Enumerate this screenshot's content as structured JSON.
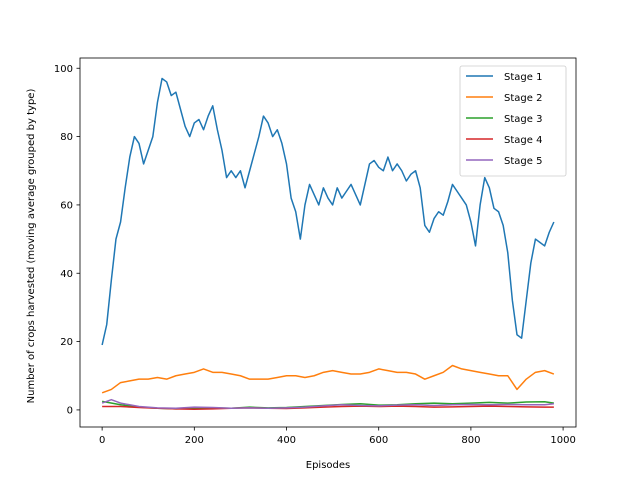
{
  "chart_data": {
    "type": "line",
    "title": "",
    "xlabel": "Episodes",
    "ylabel": "Number of crops harvested (moving average grouped by type)",
    "xlim": [
      -48,
      1028
    ],
    "ylim": [
      -5,
      103
    ],
    "xticks": [
      0,
      200,
      400,
      600,
      800,
      1000
    ],
    "yticks": [
      0,
      20,
      40,
      60,
      80,
      100
    ],
    "grid": false,
    "legend_position": "top-right",
    "series": [
      {
        "name": "Stage 1",
        "color": "#1f77b4",
        "x": [
          0,
          10,
          20,
          30,
          40,
          50,
          60,
          70,
          80,
          90,
          100,
          110,
          120,
          130,
          140,
          150,
          160,
          170,
          180,
          190,
          200,
          210,
          220,
          230,
          240,
          250,
          260,
          270,
          280,
          290,
          300,
          310,
          320,
          330,
          340,
          350,
          360,
          370,
          380,
          390,
          400,
          410,
          420,
          430,
          440,
          450,
          460,
          470,
          480,
          490,
          500,
          510,
          520,
          530,
          540,
          550,
          560,
          570,
          580,
          590,
          600,
          610,
          620,
          630,
          640,
          650,
          660,
          670,
          680,
          690,
          700,
          710,
          720,
          730,
          740,
          750,
          760,
          770,
          780,
          790,
          800,
          810,
          820,
          830,
          840,
          850,
          860,
          870,
          880,
          890,
          900,
          910,
          920,
          930,
          940,
          950,
          960,
          970,
          980
        ],
        "values": [
          19,
          25,
          38,
          50,
          55,
          65,
          74,
          80,
          78,
          72,
          76,
          80,
          90,
          97,
          96,
          92,
          93,
          88,
          83,
          80,
          84,
          85,
          82,
          86,
          89,
          82,
          76,
          68,
          70,
          68,
          70,
          65,
          70,
          75,
          80,
          86,
          84,
          80,
          82,
          78,
          72,
          62,
          58,
          50,
          60,
          66,
          63,
          60,
          65,
          62,
          60,
          65,
          62,
          64,
          66,
          63,
          60,
          66,
          72,
          73,
          71,
          70,
          74,
          70,
          72,
          70,
          67,
          69,
          70,
          65,
          54,
          52,
          56,
          58,
          57,
          61,
          66,
          64,
          62,
          60,
          55,
          48,
          60,
          68,
          65,
          59,
          58,
          54,
          46,
          32,
          22,
          21,
          32,
          43,
          50,
          49,
          48,
          52,
          55
        ]
      },
      {
        "name": "Stage 2",
        "color": "#ff7f0e",
        "x": [
          0,
          20,
          40,
          60,
          80,
          100,
          120,
          140,
          160,
          180,
          200,
          220,
          240,
          260,
          280,
          300,
          320,
          340,
          360,
          380,
          400,
          420,
          440,
          460,
          480,
          500,
          520,
          540,
          560,
          580,
          600,
          620,
          640,
          660,
          680,
          700,
          720,
          740,
          760,
          780,
          800,
          820,
          840,
          860,
          880,
          900,
          920,
          940,
          960,
          980
        ],
        "values": [
          5,
          6,
          8,
          8.5,
          9,
          9,
          9.5,
          9,
          10,
          10.5,
          11,
          12,
          11,
          11,
          10.5,
          10,
          9,
          9,
          9,
          9.5,
          10,
          10,
          9.5,
          10,
          11,
          11.5,
          11,
          10.5,
          10.5,
          11,
          12,
          11.5,
          11,
          11,
          10.5,
          9,
          10,
          11,
          13,
          12,
          11.5,
          11,
          10.5,
          10,
          10,
          6,
          9,
          11,
          11.5,
          10.5
        ]
      },
      {
        "name": "Stage 3",
        "color": "#2ca02c",
        "x": [
          0,
          40,
          80,
          120,
          160,
          200,
          240,
          280,
          320,
          360,
          400,
          440,
          480,
          520,
          560,
          600,
          640,
          680,
          720,
          760,
          800,
          840,
          880,
          920,
          960,
          980
        ],
        "values": [
          2.5,
          1.5,
          0.8,
          0.5,
          0.3,
          0.5,
          0.6,
          0.5,
          0.8,
          0.6,
          0.7,
          1.0,
          1.3,
          1.6,
          1.8,
          1.4,
          1.5,
          1.8,
          2.0,
          1.8,
          2.0,
          2.2,
          2.0,
          2.3,
          2.4,
          2.0
        ]
      },
      {
        "name": "Stage 4",
        "color": "#d62728",
        "x": [
          0,
          40,
          80,
          120,
          160,
          200,
          240,
          280,
          320,
          360,
          400,
          440,
          480,
          520,
          560,
          600,
          640,
          680,
          720,
          760,
          800,
          840,
          880,
          920,
          960,
          980
        ],
        "values": [
          1.0,
          1.0,
          0.7,
          0.5,
          0.3,
          0.2,
          0.3,
          0.5,
          0.6,
          0.5,
          0.4,
          0.6,
          0.8,
          1.0,
          1.1,
          1.0,
          1.1,
          1.0,
          0.8,
          0.9,
          1.0,
          1.1,
          1.0,
          0.9,
          0.8,
          0.8
        ]
      },
      {
        "name": "Stage 5",
        "color": "#9467bd",
        "x": [
          0,
          20,
          40,
          80,
          120,
          160,
          200,
          240,
          280,
          320,
          360,
          400,
          440,
          480,
          520,
          560,
          600,
          640,
          680,
          720,
          760,
          800,
          840,
          880,
          920,
          960,
          980
        ],
        "values": [
          2.0,
          3.0,
          2.0,
          1.0,
          0.6,
          0.5,
          0.8,
          0.7,
          0.5,
          0.6,
          0.5,
          0.6,
          0.8,
          1.2,
          1.5,
          1.3,
          1.2,
          1.4,
          1.5,
          1.3,
          1.5,
          1.6,
          1.5,
          1.6,
          1.5,
          1.5,
          1.8
        ]
      }
    ]
  }
}
